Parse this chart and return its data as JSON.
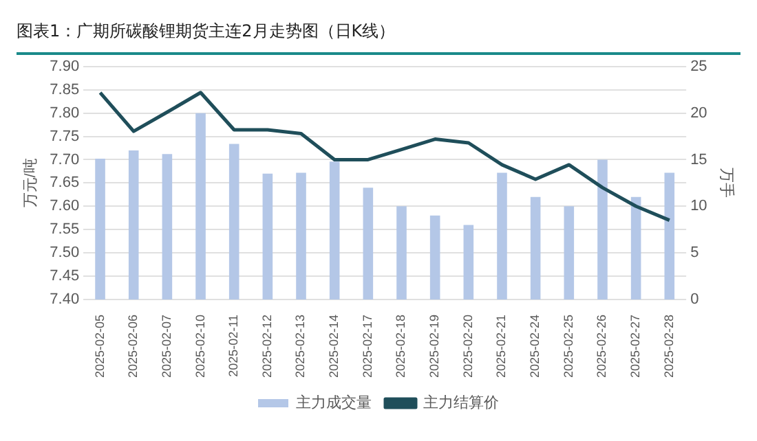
{
  "chart_data": {
    "type": "bar",
    "title": "图表1：广期所碳酸锂期货主连2月走势图（日K线）",
    "categories": [
      "2025-02-05",
      "2025-02-06",
      "2025-02-07",
      "2025-02-10",
      "2025-02-11",
      "2025-02-12",
      "2025-02-13",
      "2025-02-14",
      "2025-02-17",
      "2025-02-18",
      "2025-02-19",
      "2025-02-20",
      "2025-02-21",
      "2025-02-24",
      "2025-02-25",
      "2025-02-26",
      "2025-02-27",
      "2025-02-28"
    ],
    "series": [
      {
        "name": "主力成交量",
        "axis": "y2",
        "color": "#b4c7e7",
        "values": [
          15.1,
          16,
          15.6,
          20,
          16.7,
          13.5,
          13.6,
          14.8,
          12,
          10,
          9,
          8,
          13.6,
          11,
          10,
          15,
          11,
          13.6
        ]
      },
      {
        "name": "主力结算价",
        "type": "line",
        "color": "#1f4e5a",
        "values": [
          7.844,
          7.761,
          7.802,
          7.844,
          7.764,
          7.764,
          7.756,
          7.7,
          7.7,
          7.722,
          7.744,
          7.736,
          7.689,
          7.658,
          7.689,
          7.64,
          7.6,
          7.57
        ]
      }
    ],
    "ylabel": "万元/吨",
    "y2label": "万手",
    "ylim": [
      7.4,
      7.9
    ],
    "yticks": [
      {
        "value": 7.4,
        "label": "7.40"
      },
      {
        "value": 7.45,
        "label": "7.45"
      },
      {
        "value": 7.5,
        "label": "7.50"
      },
      {
        "value": 7.55,
        "label": "7.55"
      },
      {
        "value": 7.6,
        "label": "7.60"
      },
      {
        "value": 7.65,
        "label": "7.65"
      },
      {
        "value": 7.7,
        "label": "7.70"
      },
      {
        "value": 7.75,
        "label": "7.75"
      },
      {
        "value": 7.8,
        "label": "7.80"
      },
      {
        "value": 7.85,
        "label": "7.85"
      },
      {
        "value": 7.9,
        "label": "7.90"
      }
    ],
    "y2lim": [
      0,
      25
    ],
    "y2ticks": [
      0,
      5,
      10,
      15,
      20,
      25
    ],
    "grid": "y",
    "legend": "bottom",
    "marker": "none",
    "line_style": "solid"
  }
}
